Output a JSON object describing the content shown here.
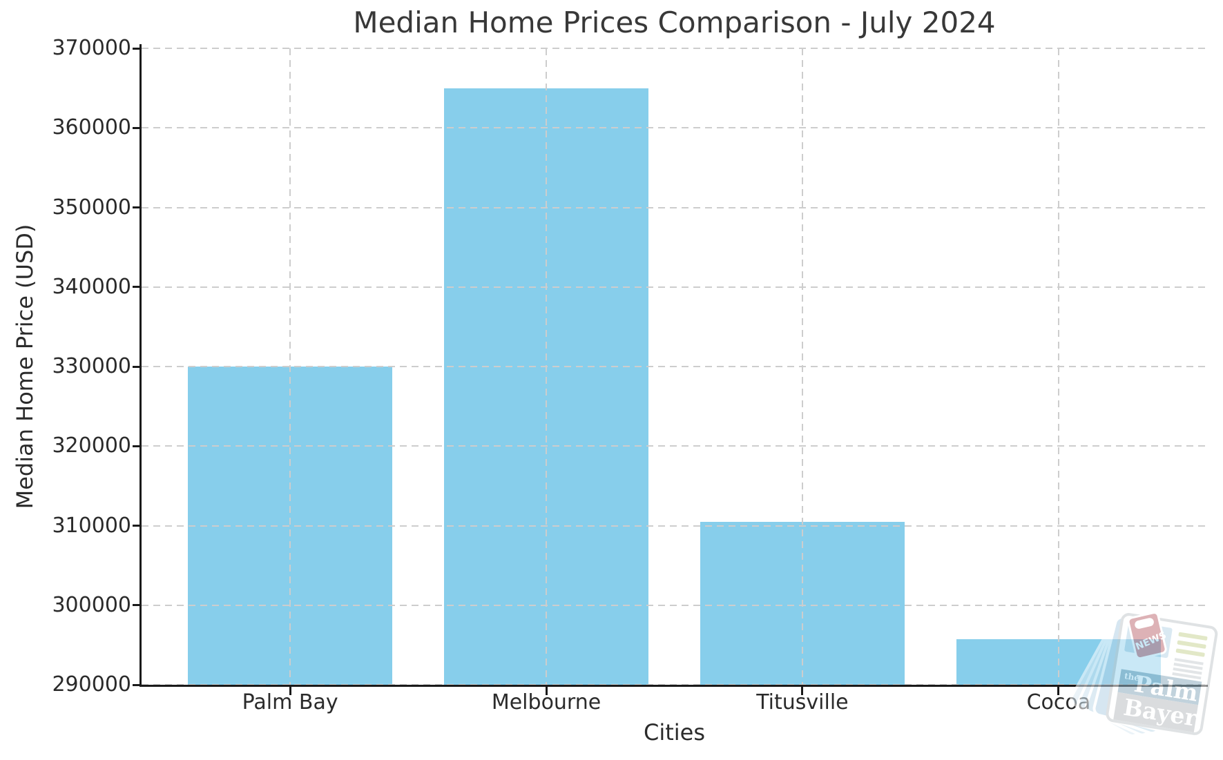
{
  "chart_data": {
    "type": "bar",
    "title": "Median Home Prices Comparison - July 2024",
    "xlabel": "Cities",
    "ylabel": "Median Home Price (USD)",
    "categories": [
      "Palm Bay",
      "Melbourne",
      "Titusville",
      "Cocoa"
    ],
    "values": [
      330000,
      365000,
      310500,
      295700
    ],
    "ylim": [
      290000,
      370000
    ],
    "yticks": [
      290000,
      300000,
      310000,
      320000,
      330000,
      340000,
      350000,
      360000,
      370000
    ],
    "bar_color": "#87CEEB",
    "grid": "dashed gray gridlines, horizontal and vertical, drawn above bars",
    "legend_position": "none"
  },
  "watermark": {
    "tag": "NEWS",
    "the": "the",
    "name_line1": "Palm",
    "name_line2": "Bayer"
  },
  "colors": {
    "bar": "#87CEEB",
    "grid": "#cdcdcd",
    "spine": "#1a1a1a",
    "text": "#2b2b2b",
    "background": "#ffffff",
    "watermark_red": "#c3747c",
    "watermark_blue": "#8fafc0",
    "watermark_page_blue": "#bcd8e8",
    "watermark_gray": "#bcc1c4",
    "watermark_green": "#ccd69b"
  }
}
